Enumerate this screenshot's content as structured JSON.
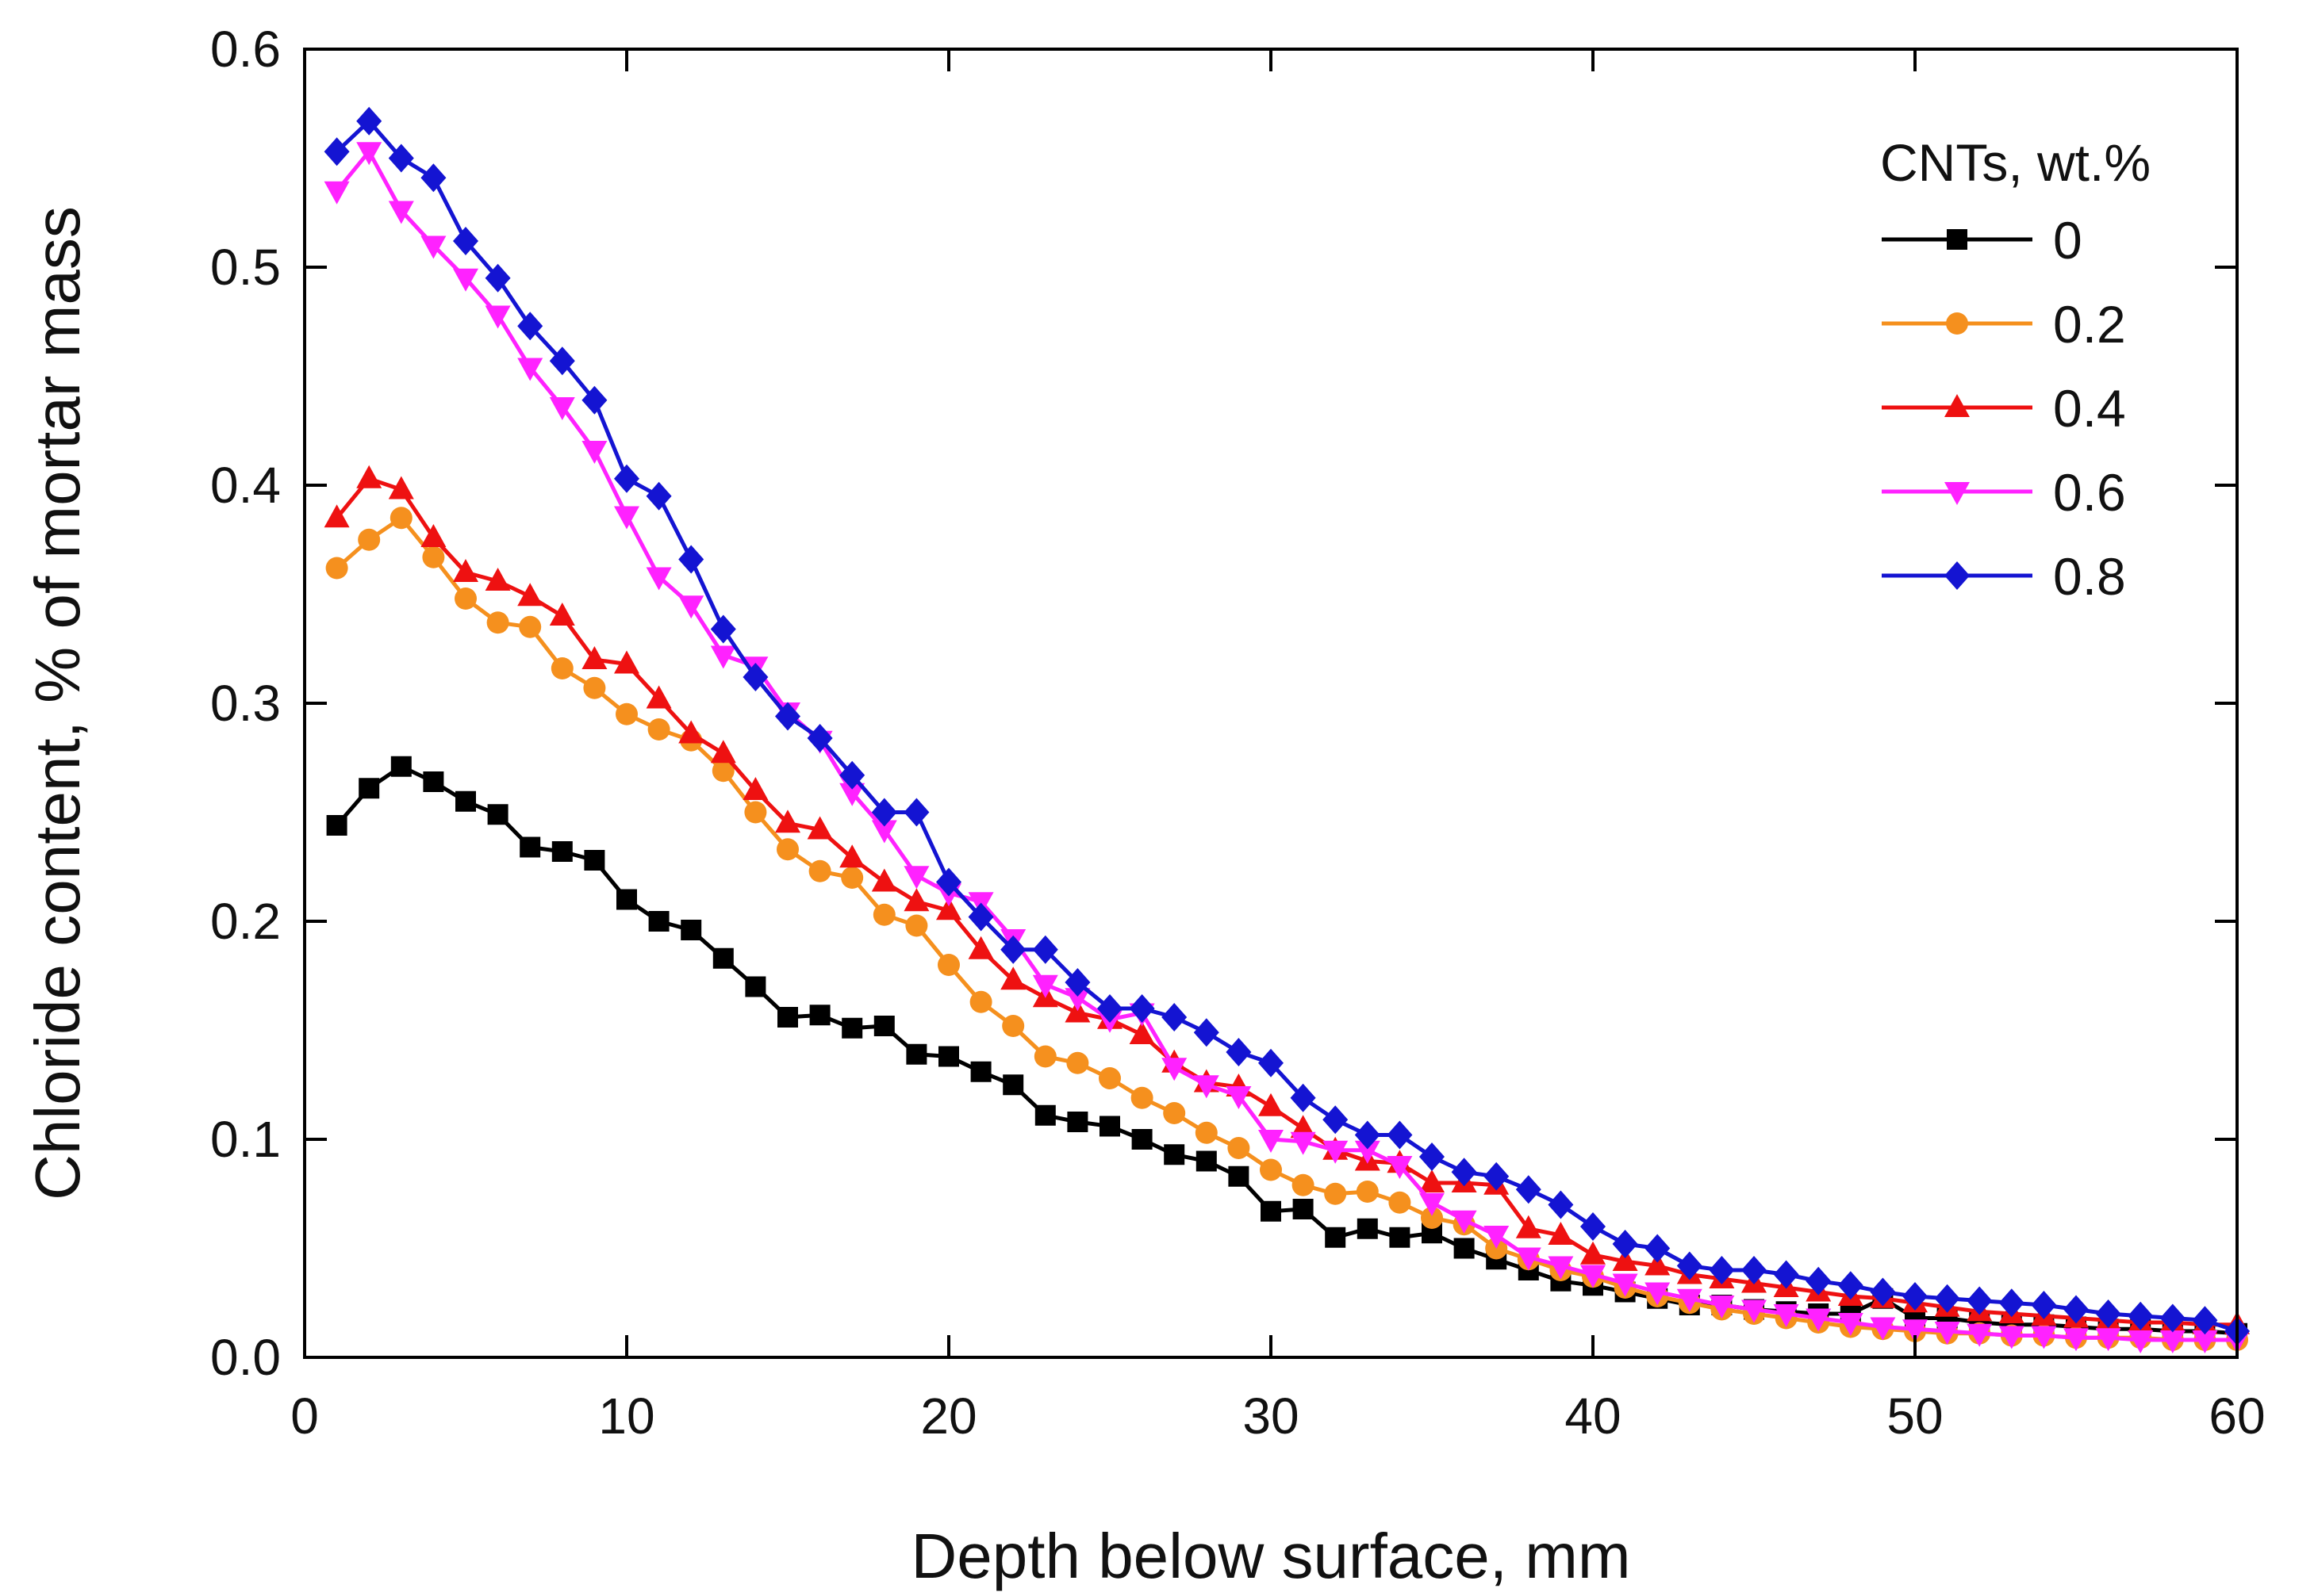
{
  "chart_data": {
    "type": "line",
    "title": "",
    "xlabel": "Depth below surface, mm",
    "ylabel": "Chloride content, % of mortar mass",
    "xlim": [
      0,
      60
    ],
    "ylim": [
      0.0,
      0.6
    ],
    "x_ticks": [
      0,
      10,
      20,
      30,
      40,
      50,
      60
    ],
    "y_ticks": [
      0.0,
      0.1,
      0.2,
      0.3,
      0.4,
      0.5,
      0.6
    ],
    "x_tick_labels": [
      "0",
      "10",
      "20",
      "30",
      "40",
      "50",
      "60"
    ],
    "y_tick_labels": [
      "0.0",
      "0.1",
      "0.2",
      "0.3",
      "0.4",
      "0.5",
      "0.6"
    ],
    "grid": false,
    "legend": {
      "title": "CNTs, wt.%",
      "position": "top-right"
    },
    "x": [
      1,
      2,
      3,
      4,
      5,
      6,
      7,
      8,
      9,
      10,
      11,
      12,
      13,
      14,
      15,
      16,
      17,
      18,
      19,
      20,
      21,
      22,
      23,
      24,
      25,
      26,
      27,
      28,
      29,
      30,
      31,
      32,
      33,
      34,
      35,
      36,
      37,
      38,
      39,
      40,
      41,
      42,
      43,
      44,
      45,
      46,
      47,
      48,
      49,
      50,
      51,
      52,
      53,
      54,
      55,
      56,
      57,
      58,
      59,
      60
    ],
    "series": [
      {
        "name": "0",
        "color": "#000000",
        "marker": "square",
        "values": [
          0.244,
          0.261,
          0.271,
          0.264,
          0.255,
          0.249,
          0.234,
          0.232,
          0.228,
          0.21,
          0.2,
          0.196,
          0.183,
          0.17,
          0.156,
          0.157,
          0.151,
          0.152,
          0.139,
          0.138,
          0.131,
          0.125,
          0.111,
          0.108,
          0.106,
          0.1,
          0.093,
          0.09,
          0.083,
          0.067,
          0.068,
          0.055,
          0.059,
          0.055,
          0.057,
          0.05,
          0.045,
          0.04,
          0.035,
          0.033,
          0.03,
          0.027,
          0.024,
          0.024,
          0.022,
          0.021,
          0.02,
          0.02,
          0.027,
          0.018,
          0.018,
          0.016,
          0.015,
          0.015,
          0.014,
          0.013,
          0.013,
          0.012,
          0.012,
          0.011
        ]
      },
      {
        "name": "0.2",
        "color": "#f5901e",
        "marker": "circle",
        "values": [
          0.362,
          0.375,
          0.385,
          0.367,
          0.348,
          0.337,
          0.335,
          0.316,
          0.307,
          0.295,
          0.288,
          0.283,
          0.269,
          0.25,
          0.233,
          0.223,
          0.22,
          0.203,
          0.198,
          0.18,
          0.163,
          0.152,
          0.138,
          0.135,
          0.128,
          0.119,
          0.112,
          0.103,
          0.096,
          0.086,
          0.079,
          0.075,
          0.076,
          0.071,
          0.064,
          0.061,
          0.05,
          0.045,
          0.04,
          0.037,
          0.032,
          0.028,
          0.025,
          0.022,
          0.02,
          0.018,
          0.016,
          0.014,
          0.013,
          0.012,
          0.011,
          0.011,
          0.01,
          0.01,
          0.009,
          0.009,
          0.009,
          0.008,
          0.008,
          0.008
        ]
      },
      {
        "name": "0.4",
        "color": "#ee1111",
        "marker": "triangle-up",
        "values": [
          0.385,
          0.403,
          0.398,
          0.376,
          0.36,
          0.356,
          0.349,
          0.34,
          0.32,
          0.318,
          0.302,
          0.286,
          0.277,
          0.26,
          0.245,
          0.242,
          0.229,
          0.218,
          0.209,
          0.205,
          0.187,
          0.173,
          0.165,
          0.158,
          0.155,
          0.148,
          0.135,
          0.126,
          0.124,
          0.115,
          0.105,
          0.095,
          0.09,
          0.089,
          0.08,
          0.08,
          0.079,
          0.059,
          0.056,
          0.047,
          0.044,
          0.042,
          0.038,
          0.036,
          0.034,
          0.032,
          0.03,
          0.028,
          0.027,
          0.025,
          0.023,
          0.021,
          0.02,
          0.019,
          0.018,
          0.017,
          0.016,
          0.016,
          0.015,
          0.015
        ]
      },
      {
        "name": "0.6",
        "color": "#ff22ff",
        "marker": "triangle-down",
        "values": [
          0.535,
          0.553,
          0.526,
          0.51,
          0.495,
          0.478,
          0.454,
          0.436,
          0.416,
          0.386,
          0.358,
          0.345,
          0.322,
          0.317,
          0.296,
          0.283,
          0.259,
          0.242,
          0.221,
          0.213,
          0.209,
          0.192,
          0.171,
          0.165,
          0.155,
          0.158,
          0.133,
          0.125,
          0.12,
          0.1,
          0.099,
          0.095,
          0.095,
          0.088,
          0.071,
          0.063,
          0.056,
          0.046,
          0.042,
          0.038,
          0.034,
          0.03,
          0.027,
          0.024,
          0.022,
          0.02,
          0.018,
          0.016,
          0.014,
          0.013,
          0.012,
          0.011,
          0.01,
          0.01,
          0.009,
          0.009,
          0.008,
          0.008,
          0.008,
          0.008
        ]
      },
      {
        "name": "0.8",
        "color": "#1414d2",
        "marker": "diamond",
        "values": [
          0.553,
          0.567,
          0.55,
          0.541,
          0.512,
          0.495,
          0.473,
          0.457,
          0.439,
          0.403,
          0.395,
          0.366,
          0.334,
          0.312,
          0.294,
          0.284,
          0.267,
          0.25,
          0.25,
          0.218,
          0.202,
          0.187,
          0.187,
          0.172,
          0.16,
          0.16,
          0.156,
          0.149,
          0.14,
          0.135,
          0.119,
          0.109,
          0.102,
          0.102,
          0.092,
          0.085,
          0.083,
          0.077,
          0.07,
          0.06,
          0.052,
          0.05,
          0.042,
          0.04,
          0.04,
          0.038,
          0.035,
          0.033,
          0.03,
          0.028,
          0.027,
          0.026,
          0.025,
          0.024,
          0.022,
          0.02,
          0.019,
          0.018,
          0.017,
          0.012
        ]
      }
    ]
  }
}
